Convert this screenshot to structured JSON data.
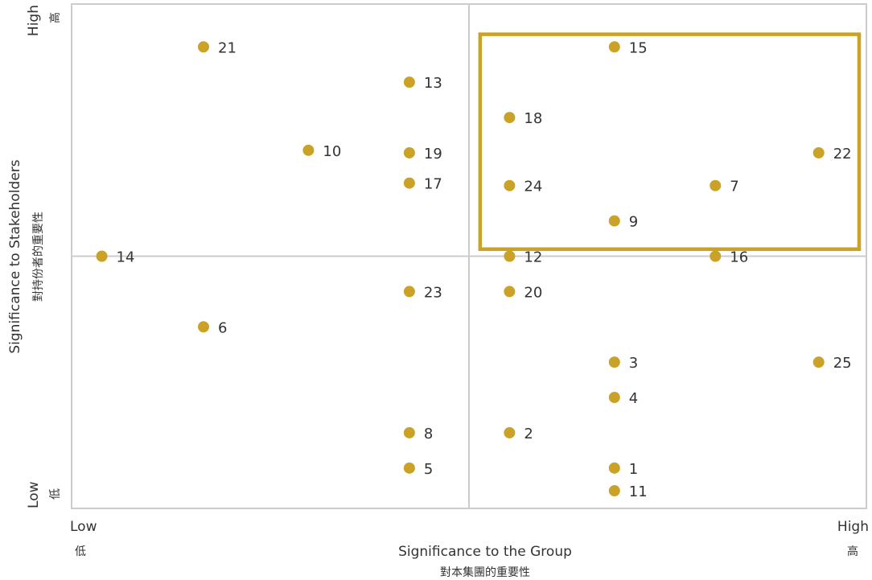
{
  "chart_data": {
    "type": "scatter",
    "xlabel": "Significance to the Group",
    "xlabel_zh": "對本集團的重要性",
    "ylabel": "Significance to Stakeholders",
    "ylabel_zh": "對持份者的重要性",
    "x_ticks": {
      "low": "Low",
      "low_zh": "低",
      "high": "High",
      "high_zh": "高"
    },
    "y_ticks": {
      "low": "Low",
      "low_zh": "低",
      "high": "High",
      "high_zh": "高"
    },
    "xlim": [
      0,
      1
    ],
    "ylim": [
      0,
      1
    ],
    "grid": "quadrants",
    "marker_color": "#c9a227",
    "highlight_color": "#c9a227",
    "highlight_region": {
      "x": [
        0.514,
        1.0
      ],
      "y": [
        0.514,
        0.94
      ]
    },
    "points": [
      {
        "label": "21",
        "x": 0.166,
        "y": 0.915
      },
      {
        "label": "15",
        "x": 0.683,
        "y": 0.915
      },
      {
        "label": "13",
        "x": 0.425,
        "y": 0.845
      },
      {
        "label": "18",
        "x": 0.551,
        "y": 0.775
      },
      {
        "label": "10",
        "x": 0.298,
        "y": 0.71
      },
      {
        "label": "19",
        "x": 0.425,
        "y": 0.705
      },
      {
        "label": "22",
        "x": 0.94,
        "y": 0.705
      },
      {
        "label": "17",
        "x": 0.425,
        "y": 0.645
      },
      {
        "label": "24",
        "x": 0.551,
        "y": 0.64
      },
      {
        "label": "7",
        "x": 0.81,
        "y": 0.64
      },
      {
        "label": "9",
        "x": 0.683,
        "y": 0.57
      },
      {
        "label": "14",
        "x": 0.038,
        "y": 0.5
      },
      {
        "label": "12",
        "x": 0.551,
        "y": 0.5
      },
      {
        "label": "16",
        "x": 0.81,
        "y": 0.5
      },
      {
        "label": "23",
        "x": 0.425,
        "y": 0.43
      },
      {
        "label": "20",
        "x": 0.551,
        "y": 0.43
      },
      {
        "label": "6",
        "x": 0.166,
        "y": 0.36
      },
      {
        "label": "3",
        "x": 0.683,
        "y": 0.29
      },
      {
        "label": "25",
        "x": 0.94,
        "y": 0.29
      },
      {
        "label": "4",
        "x": 0.683,
        "y": 0.22
      },
      {
        "label": "8",
        "x": 0.425,
        "y": 0.15
      },
      {
        "label": "2",
        "x": 0.551,
        "y": 0.15
      },
      {
        "label": "5",
        "x": 0.425,
        "y": 0.08
      },
      {
        "label": "1",
        "x": 0.683,
        "y": 0.08
      },
      {
        "label": "11",
        "x": 0.683,
        "y": 0.035
      }
    ]
  }
}
